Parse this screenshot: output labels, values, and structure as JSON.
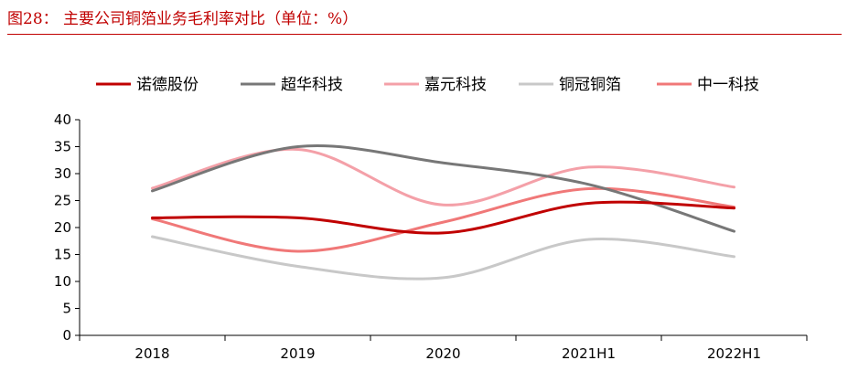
{
  "figure": {
    "title": "图28：  主要公司铜箔业务毛利率对比（单位：%）"
  },
  "chart_data": {
    "type": "line",
    "categories": [
      "2018",
      "2019",
      "2020",
      "2021H1",
      "2022H1"
    ],
    "ylim": [
      0,
      40
    ],
    "yticks": [
      0,
      5,
      10,
      15,
      20,
      25,
      30,
      35,
      40
    ],
    "grid": false,
    "legend_position": "top",
    "xlabel": "",
    "ylabel": "",
    "series": [
      {
        "name": "诺德股份",
        "color": "#c00000",
        "values": [
          21.8,
          21.8,
          19.0,
          24.5,
          23.6
        ]
      },
      {
        "name": "超华科技",
        "color": "#777777",
        "values": [
          26.8,
          35.0,
          32.0,
          28.0,
          19.3
        ]
      },
      {
        "name": "嘉元科技",
        "color": "#f4a0a8",
        "values": [
          27.3,
          34.5,
          24.2,
          31.2,
          27.5
        ]
      },
      {
        "name": "铜冠铜箔",
        "color": "#c8c8c8",
        "values": [
          18.3,
          12.8,
          10.7,
          17.8,
          14.6
        ]
      },
      {
        "name": "中一科技",
        "color": "#f07878",
        "values": [
          21.6,
          15.6,
          21.0,
          27.2,
          23.8
        ]
      }
    ]
  }
}
